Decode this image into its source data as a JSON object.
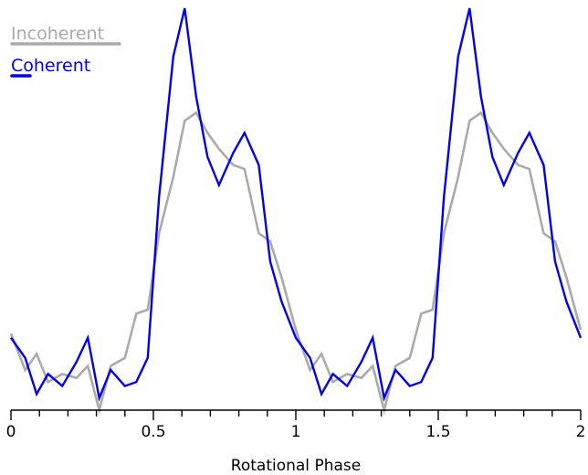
{
  "chart_data": {
    "type": "line",
    "xlabel": "Rotational Phase",
    "ylabel": "",
    "xlim": [
      0,
      2
    ],
    "ylim": [
      0,
      1
    ],
    "grid": false,
    "legend_position": "top-left",
    "x_ticks": [
      {
        "value": 0,
        "label": "0"
      },
      {
        "value": 0.5,
        "label": "0.5"
      },
      {
        "value": 1,
        "label": "1"
      },
      {
        "value": 1.5,
        "label": "1.5"
      },
      {
        "value": 2,
        "label": "2"
      }
    ],
    "minor_tick_step": 0.1,
    "x": [
      0.0,
      0.05,
      0.09,
      0.13,
      0.18,
      0.23,
      0.27,
      0.31,
      0.35,
      0.4,
      0.44,
      0.48,
      0.52,
      0.57,
      0.61,
      0.65,
      0.69,
      0.73,
      0.78,
      0.82,
      0.87,
      0.91,
      0.95,
      1.0
    ],
    "series": [
      {
        "name": "Incoherent",
        "color": "#aaaaaa",
        "values": [
          0.19,
          0.1,
          0.14,
          0.07,
          0.09,
          0.08,
          0.11,
          0.0,
          0.11,
          0.13,
          0.24,
          0.25,
          0.44,
          0.58,
          0.72,
          0.74,
          0.69,
          0.65,
          0.61,
          0.6,
          0.44,
          0.42,
          0.33,
          0.2
        ]
      },
      {
        "name": "Coherent",
        "color": "#0000ee",
        "values": [
          0.18,
          0.13,
          0.04,
          0.09,
          0.06,
          0.12,
          0.18,
          0.03,
          0.1,
          0.06,
          0.07,
          0.13,
          0.53,
          0.88,
          1.0,
          0.78,
          0.63,
          0.56,
          0.64,
          0.69,
          0.61,
          0.37,
          0.27,
          0.18
        ]
      }
    ]
  }
}
